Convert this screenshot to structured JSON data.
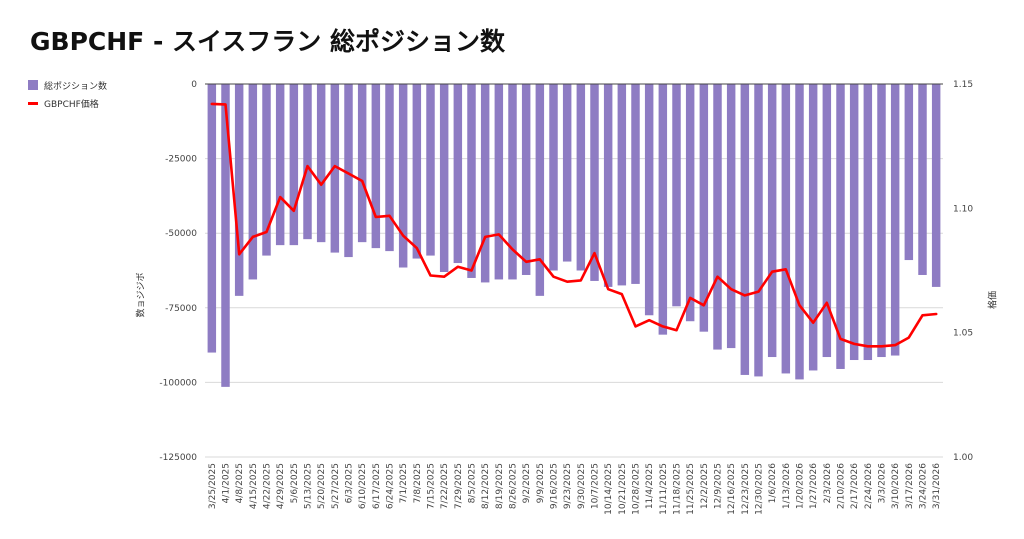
{
  "title": "GBPCHF - スイスフラン 総ポジション数",
  "colors": {
    "bar": "#8e7cc3",
    "line": "#ff0000",
    "grid": "#d9d9d9",
    "zero": "#444444"
  },
  "chart_data": {
    "type": "bar+line",
    "title": "GBPCHF - スイスフラン 総ポジション数",
    "ylabel_left": "数ョジジボ",
    "ylabel_right": "格価",
    "legend": [
      "総ポジション数",
      "GBPCHF価格"
    ],
    "legend_position": "top-left",
    "grid": true,
    "y_left": {
      "min": -125000,
      "max": 0,
      "ticks": [
        0,
        -25000,
        -50000,
        -75000,
        -100000,
        -125000
      ]
    },
    "y_right": {
      "min": 1.0,
      "max": 1.15,
      "ticks": [
        "1.15",
        "1.10",
        "1.05",
        "1.00"
      ]
    },
    "categories": [
      "3/25/2025",
      "4/1/2025",
      "4/8/2025",
      "4/15/2025",
      "4/22/2025",
      "4/29/2025",
      "5/6/2025",
      "5/13/2025",
      "5/20/2025",
      "5/27/2025",
      "6/3/2025",
      "6/10/2025",
      "6/17/2025",
      "6/24/2025",
      "7/1/2025",
      "7/8/2025",
      "7/15/2025",
      "7/22/2025",
      "7/29/2025",
      "8/5/2025",
      "8/12/2025",
      "8/19/2025",
      "8/26/2025",
      "9/2/2025",
      "9/9/2025",
      "9/16/2025",
      "9/23/2025",
      "9/30/2025",
      "10/7/2025",
      "10/14/2025",
      "10/21/2025",
      "10/28/2025",
      "11/4/2025",
      "11/11/2025",
      "11/18/2025",
      "11/25/2025",
      "12/2/2025",
      "12/9/2025",
      "12/16/2025",
      "12/23/2025",
      "12/30/2025",
      "1/6/2026",
      "1/13/2026",
      "1/20/2026",
      "1/27/2026",
      "2/3/2026",
      "2/10/2026",
      "2/17/2026",
      "2/24/2026",
      "3/3/2026",
      "3/10/2026",
      "3/17/2026",
      "3/24/2026",
      "3/31/2026"
    ],
    "label_categories": [
      "3/25/2025",
      "4/1/2025",
      "4/8/2025",
      "4/15/2025",
      "4/22/2025",
      "4/29/2025",
      "5/6/2025",
      "5/13/2025",
      "5/20/2025",
      "5/27/2025",
      "6/3/2025",
      "6/10/2025",
      "6/17/2025",
      "6/24/2025",
      "7/1/2025",
      "7/8/2025",
      "7/15/2025",
      "7/22/2025",
      "7/29/2025",
      "8/5/2025",
      "8/12/2025",
      "8/19/2025",
      "8/26/2025",
      "9/2/2025",
      "9/9/2025",
      "9/16/2025",
      "9/23/2025",
      "9/30/2025",
      "10/7/2025",
      "10/14/2025",
      "10/21/2025",
      "10/28/2025",
      "11/4/2025",
      "11/11/2025",
      "11/18/2025",
      "11/25/2025",
      "12/2/2025",
      "12/9/2025",
      "12/16/2025",
      "12/23/2025",
      "12/30/2025",
      "1/6/2026",
      "1/13/2026",
      "1/20/2026",
      "1/27/2026",
      "2/3/2026",
      "2/10/2026",
      "2/17/2026",
      "2/24/2026",
      "3/3/2026",
      "3/10/2026",
      "3/17/2026",
      "3/24/2026",
      "3/31/2026"
    ],
    "series": [
      {
        "name": "総ポジション数",
        "type": "bar",
        "axis": "left",
        "values": [
          -90000,
          -101500,
          -71000,
          -65500,
          -57500,
          -54000,
          -54000,
          -52000,
          -53000,
          -56500,
          -58000,
          -53000,
          -55000,
          -56000,
          -61500,
          -58500,
          -57500,
          -63000,
          -60000,
          -65000,
          -66500,
          -65500,
          -65500,
          -64000,
          -71000,
          -62500,
          -59500,
          -62500,
          -66000,
          -68000,
          -67500,
          -67000,
          -77500,
          -84000,
          -74500,
          -79500,
          -83000,
          -89000,
          -88500,
          -97500,
          -98000,
          -91500,
          -97000,
          -99000,
          -96000,
          -91500,
          -95500,
          -92500,
          -92500,
          -91500,
          -91000,
          -59000,
          -64000,
          -68000
        ]
      },
      {
        "name": "GBPCHF価格",
        "type": "line",
        "axis": "right",
        "values": [
          1.142,
          1.1418,
          1.0815,
          1.0885,
          1.0905,
          1.1045,
          1.099,
          1.117,
          1.1095,
          1.117,
          1.114,
          1.111,
          1.0965,
          1.097,
          1.089,
          1.084,
          1.073,
          1.0725,
          1.0765,
          1.075,
          1.0885,
          1.0895,
          1.0835,
          1.0785,
          1.0795,
          1.0725,
          1.0705,
          1.071,
          1.082,
          1.0675,
          1.0655,
          1.0525,
          1.055,
          1.0525,
          1.051,
          1.064,
          1.061,
          1.0725,
          1.0675,
          1.065,
          1.0665,
          1.0745,
          1.0755,
          1.061,
          1.054,
          1.062,
          1.0475,
          1.0455,
          1.0445,
          1.0445,
          1.045,
          1.048,
          1.057,
          1.0575
        ]
      }
    ]
  }
}
